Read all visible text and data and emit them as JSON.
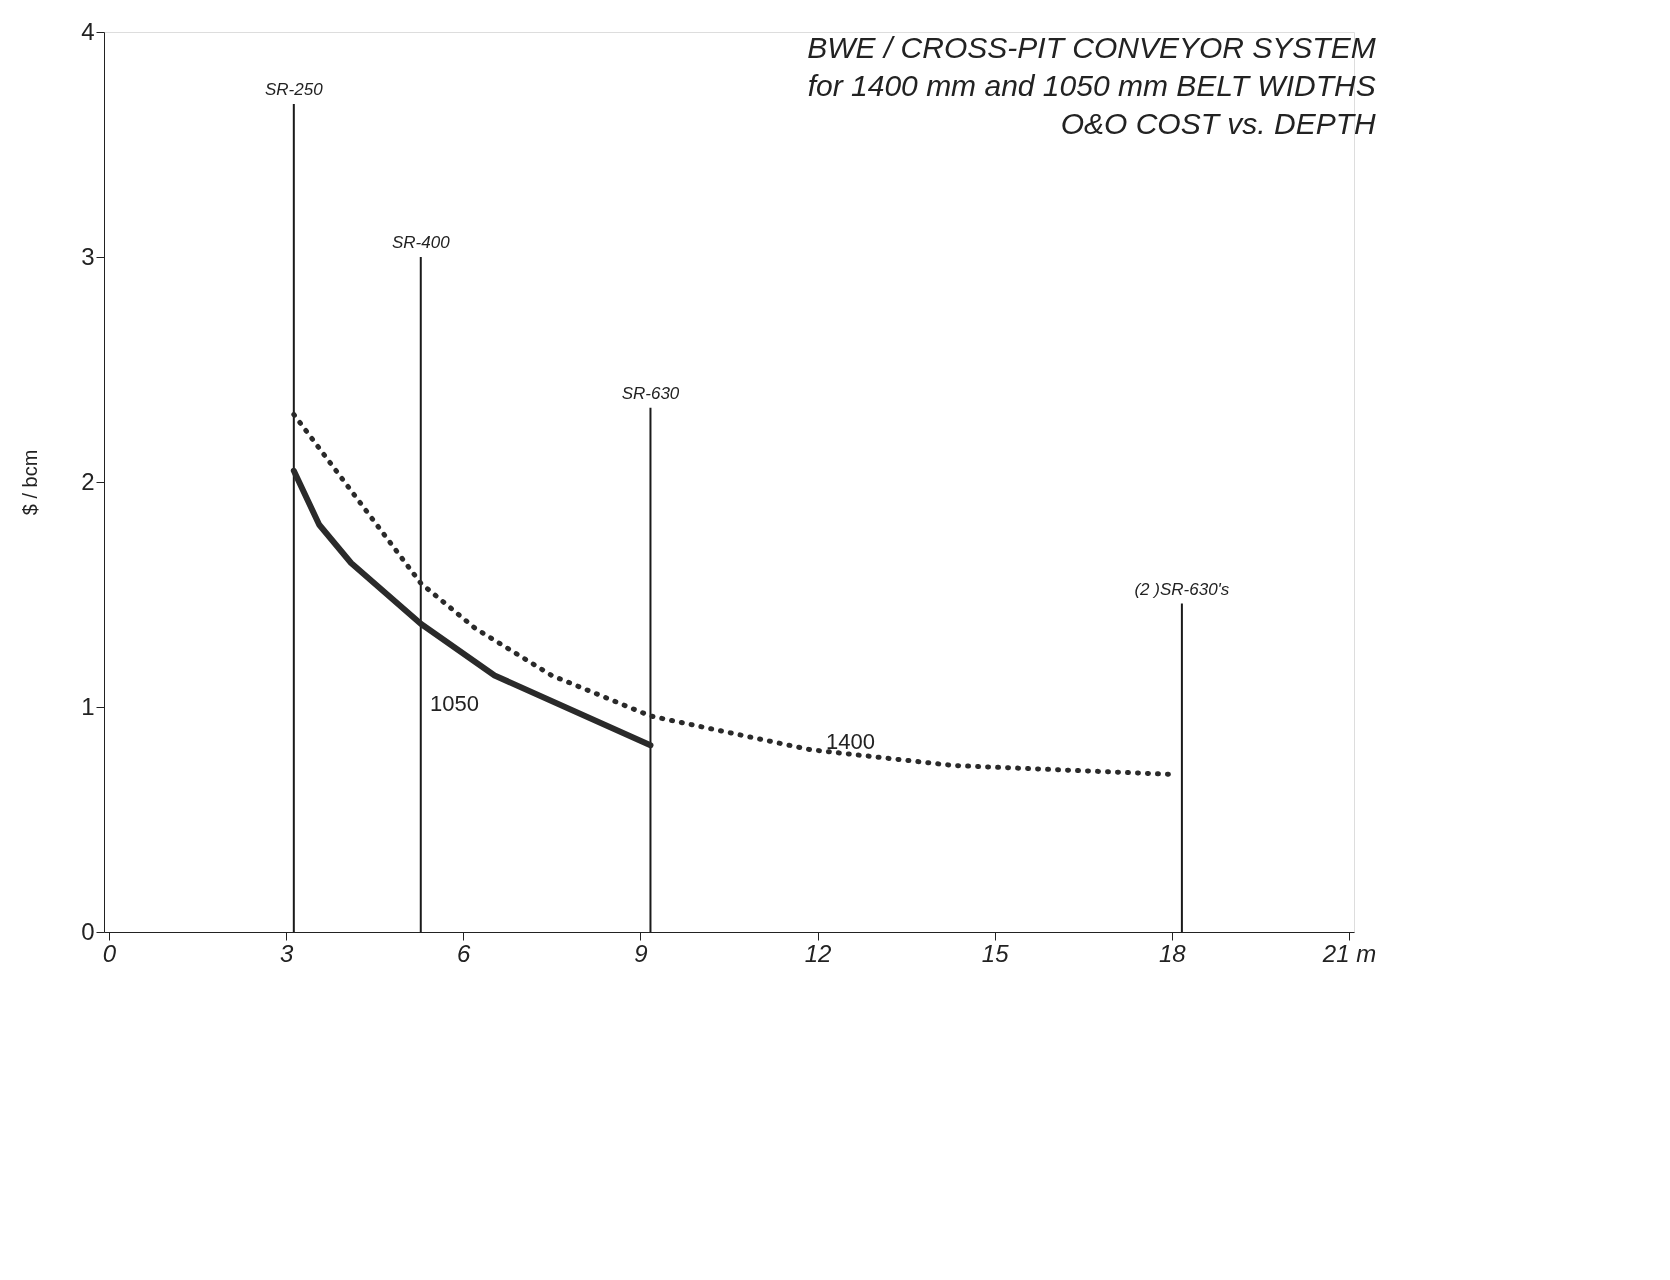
{
  "chart_data": {
    "type": "line",
    "title": [
      "BWE / CROSS-PIT CONVEYOR SYSTEM",
      "for 1400 mm  and 1050 mm BELT WIDTHS",
      "O&O COST vs. DEPTH"
    ],
    "ylabel": "$ / bcm",
    "xlim": [
      0,
      21
    ],
    "xticks": [
      0,
      3,
      6,
      9,
      12,
      15,
      18,
      {
        "value": 21,
        "label": "21 m"
      }
    ],
    "ylim": [
      0,
      4
    ],
    "yticks": [
      0,
      1,
      2,
      3,
      4
    ],
    "grid": false,
    "series": [
      {
        "type": "bar",
        "color": "#1a1a1a",
        "x": [
          3.13,
          5.28,
          9.17,
          18.17
        ],
        "values": [
          3.68,
          3.0,
          2.33,
          1.46
        ],
        "value_labels": [
          "SR-250",
          "SR-400",
          "SR-630",
          "(2 )SR-630's"
        ]
      },
      {
        "name": "1050",
        "color": "#2a2a2a",
        "line_style": "solid",
        "x": [
          3.13,
          3.56,
          4.1,
          5.28,
          6.53,
          9.17
        ],
        "values": [
          2.05,
          1.81,
          1.64,
          1.37,
          1.14,
          0.83
        ]
      },
      {
        "name": "1400",
        "color": "#2a2a2a",
        "line_style": "dotted",
        "x": [
          3.13,
          5.28,
          6.2,
          7.5,
          9.17,
          11.88,
          14.3,
          18.05
        ],
        "values": [
          2.3,
          1.55,
          1.35,
          1.14,
          0.96,
          0.81,
          0.74,
          0.7
        ]
      }
    ]
  }
}
